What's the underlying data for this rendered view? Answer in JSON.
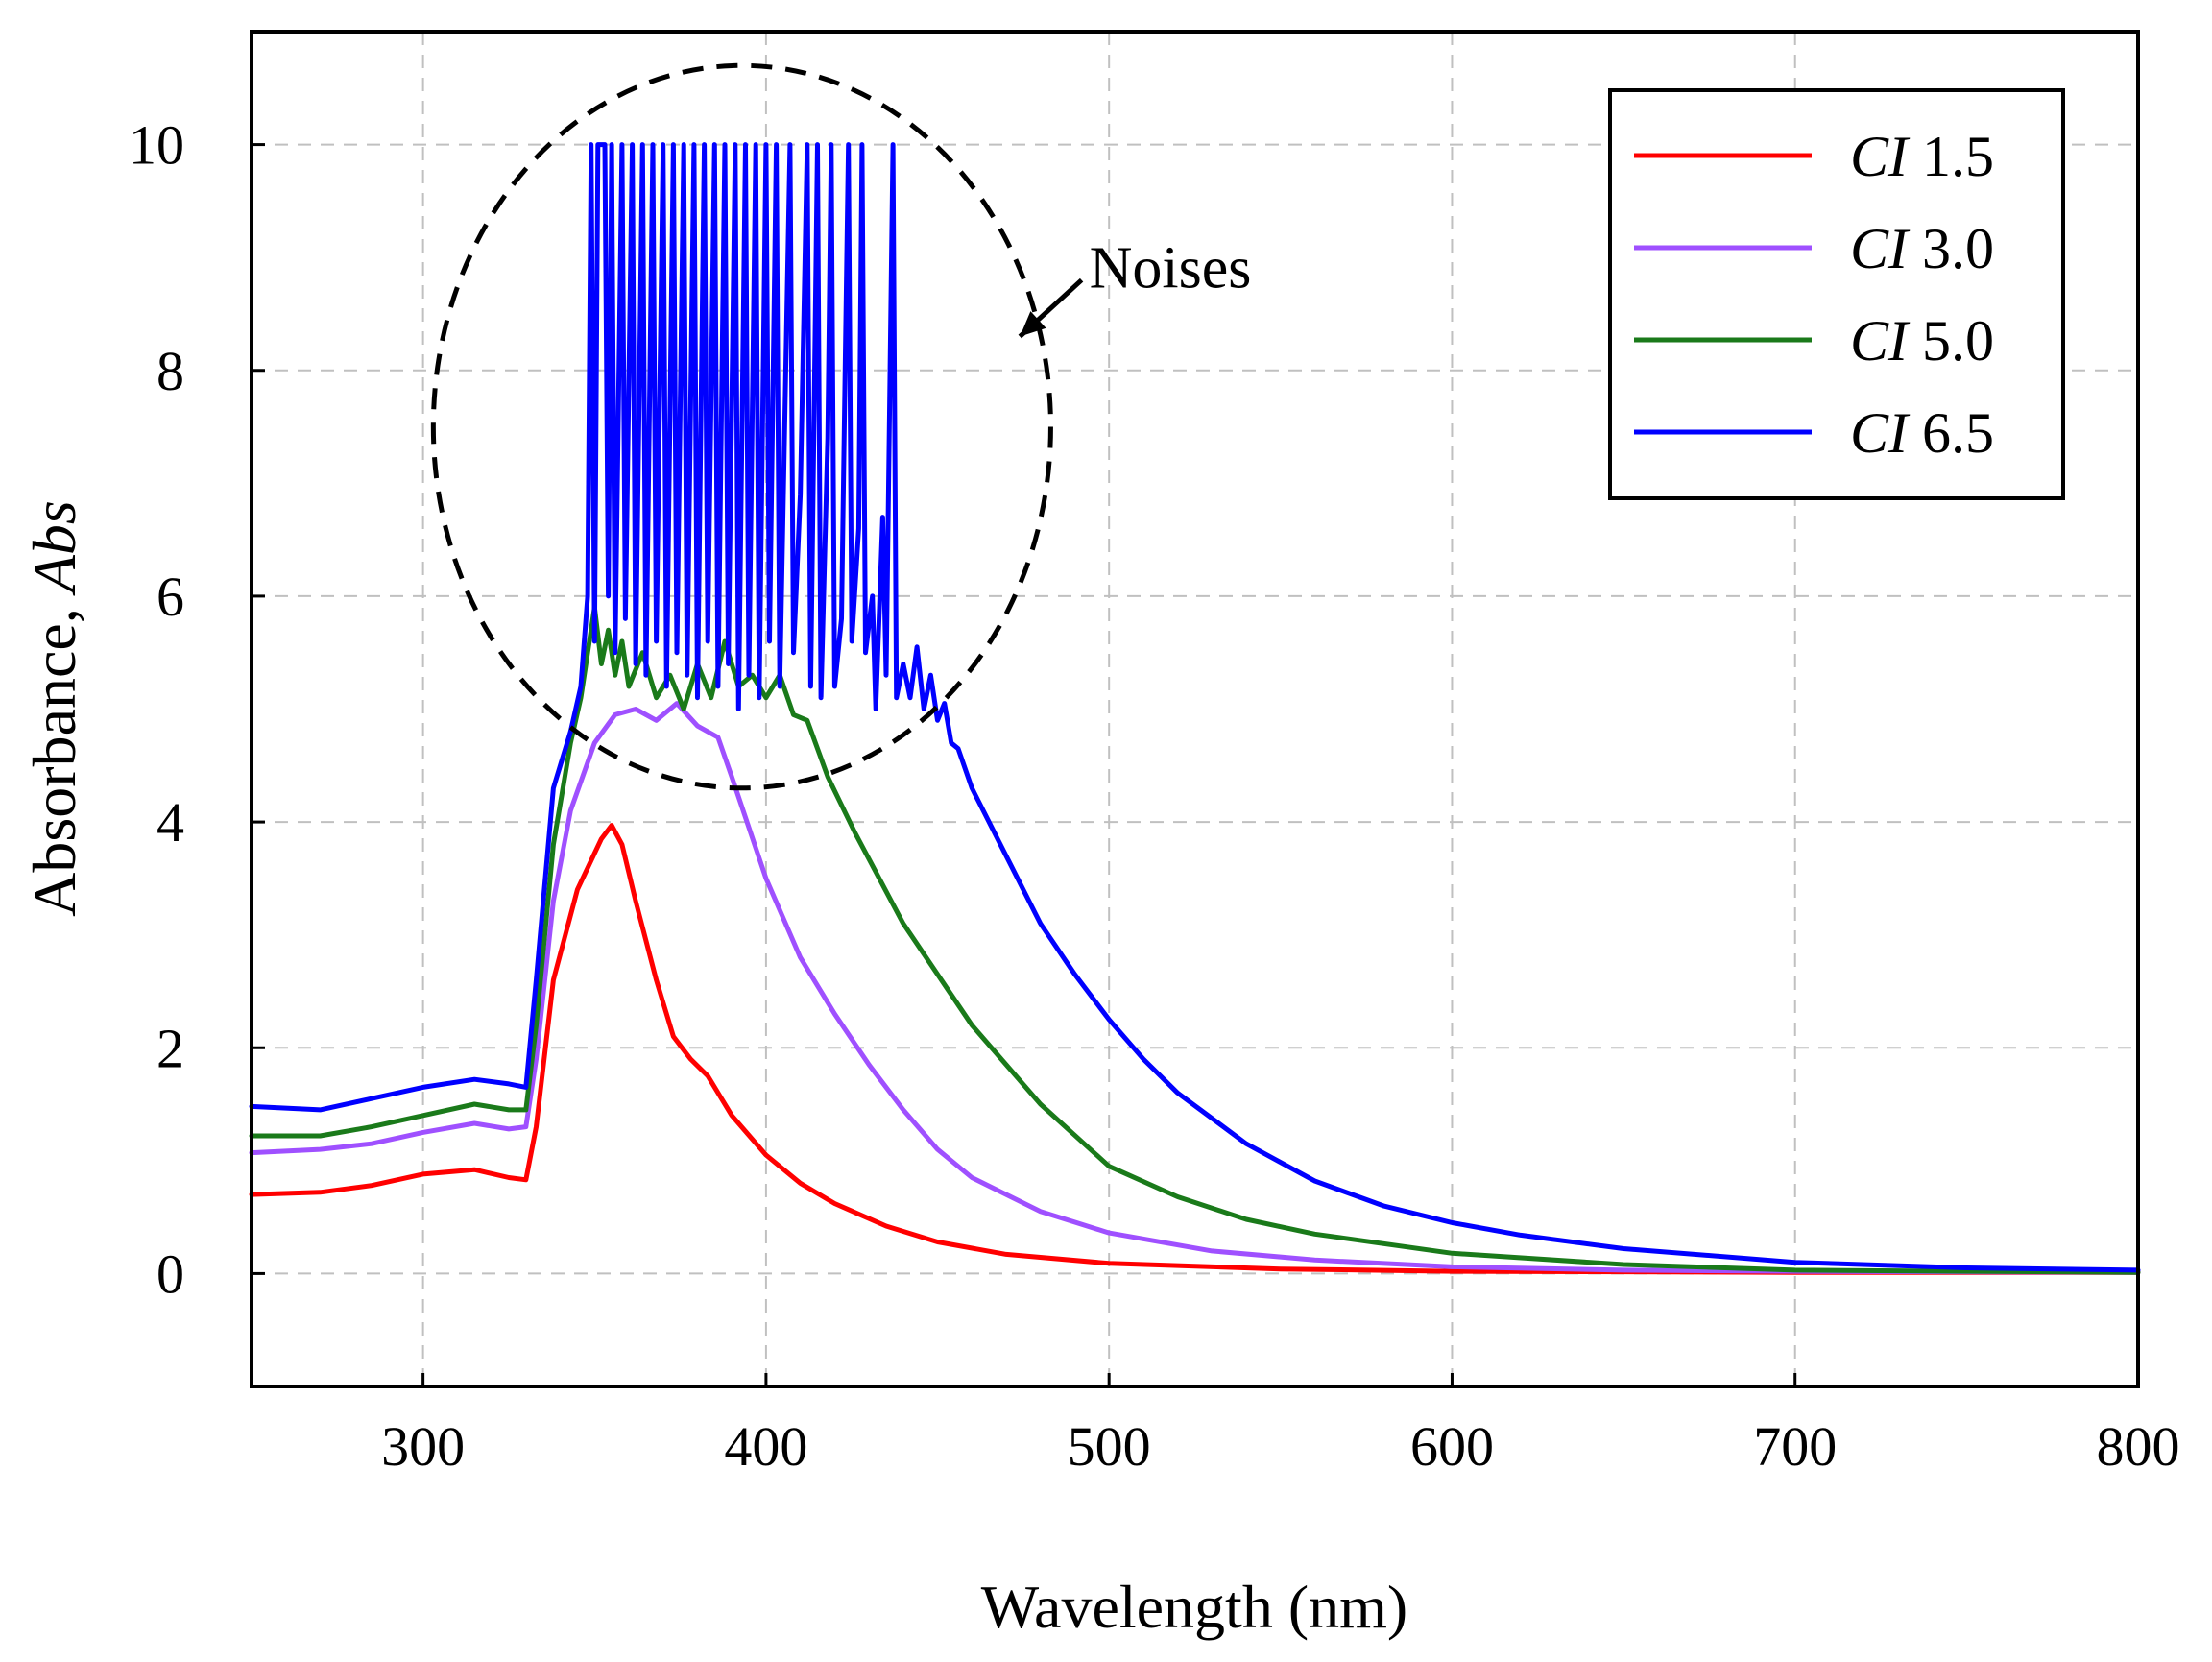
{
  "chart_data": {
    "type": "line",
    "title": "",
    "xlabel": "Wavelength (nm)",
    "ylabel_prefix": "Absorbance, ",
    "ylabel_italic": "Abs",
    "xlim": [
      250,
      800
    ],
    "ylim": [
      -1,
      11
    ],
    "xticks": [
      300,
      400,
      500,
      600,
      700,
      800
    ],
    "yticks": [
      0,
      2,
      4,
      6,
      8,
      10
    ],
    "grid": true,
    "legend_position": "top-right",
    "annotation": {
      "text": "Noises",
      "ellipse_center": [
        393,
        7.5
      ],
      "ellipse_radius_x": 90,
      "ellipse_radius_y": 3.2,
      "arrow_from": [
        492,
        8.8
      ],
      "arrow_to": [
        474,
        8.3
      ]
    },
    "series": [
      {
        "name_italic": "CI",
        "name_value": " 1.5",
        "color": "#ff0000",
        "points": [
          [
            250,
            0.7
          ],
          [
            270,
            0.72
          ],
          [
            285,
            0.78
          ],
          [
            300,
            0.88
          ],
          [
            315,
            0.92
          ],
          [
            325,
            0.85
          ],
          [
            330,
            0.83
          ],
          [
            333,
            1.3
          ],
          [
            338,
            2.6
          ],
          [
            345,
            3.4
          ],
          [
            352,
            3.85
          ],
          [
            355,
            3.97
          ],
          [
            358,
            3.8
          ],
          [
            362,
            3.3
          ],
          [
            368,
            2.6
          ],
          [
            373,
            2.1
          ],
          [
            378,
            1.9
          ],
          [
            383,
            1.75
          ],
          [
            390,
            1.4
          ],
          [
            400,
            1.05
          ],
          [
            410,
            0.8
          ],
          [
            420,
            0.62
          ],
          [
            435,
            0.42
          ],
          [
            450,
            0.28
          ],
          [
            470,
            0.17
          ],
          [
            500,
            0.09
          ],
          [
            550,
            0.04
          ],
          [
            600,
            0.02
          ],
          [
            700,
            0.01
          ],
          [
            800,
            0.01
          ]
        ]
      },
      {
        "name_italic": "CI",
        "name_value": " 3.0",
        "color": "#9f50ff",
        "points": [
          [
            250,
            1.07
          ],
          [
            270,
            1.1
          ],
          [
            285,
            1.15
          ],
          [
            300,
            1.25
          ],
          [
            315,
            1.33
          ],
          [
            325,
            1.28
          ],
          [
            330,
            1.3
          ],
          [
            333,
            1.9
          ],
          [
            338,
            3.3
          ],
          [
            343,
            4.1
          ],
          [
            350,
            4.7
          ],
          [
            356,
            4.95
          ],
          [
            362,
            5.0
          ],
          [
            368,
            4.9
          ],
          [
            374,
            5.05
          ],
          [
            380,
            4.85
          ],
          [
            386,
            4.75
          ],
          [
            390,
            4.4
          ],
          [
            400,
            3.5
          ],
          [
            410,
            2.8
          ],
          [
            420,
            2.3
          ],
          [
            430,
            1.85
          ],
          [
            440,
            1.45
          ],
          [
            450,
            1.1
          ],
          [
            460,
            0.85
          ],
          [
            480,
            0.55
          ],
          [
            500,
            0.36
          ],
          [
            530,
            0.2
          ],
          [
            560,
            0.12
          ],
          [
            600,
            0.06
          ],
          [
            650,
            0.03
          ],
          [
            700,
            0.02
          ],
          [
            800,
            0.01
          ]
        ]
      },
      {
        "name_italic": "CI",
        "name_value": " 5.0",
        "color": "#1a7a1a",
        "points": [
          [
            250,
            1.22
          ],
          [
            270,
            1.22
          ],
          [
            285,
            1.3
          ],
          [
            300,
            1.4
          ],
          [
            315,
            1.5
          ],
          [
            325,
            1.45
          ],
          [
            330,
            1.45
          ],
          [
            333,
            2.2
          ],
          [
            338,
            3.8
          ],
          [
            343,
            4.7
          ],
          [
            346,
            5.1
          ],
          [
            348,
            5.5
          ],
          [
            350,
            5.9
          ],
          [
            352,
            5.4
          ],
          [
            354,
            5.7
          ],
          [
            356,
            5.3
          ],
          [
            358,
            5.6
          ],
          [
            360,
            5.2
          ],
          [
            364,
            5.5
          ],
          [
            368,
            5.1
          ],
          [
            372,
            5.3
          ],
          [
            376,
            5.0
          ],
          [
            380,
            5.4
          ],
          [
            384,
            5.1
          ],
          [
            388,
            5.6
          ],
          [
            392,
            5.2
          ],
          [
            396,
            5.3
          ],
          [
            400,
            5.1
          ],
          [
            404,
            5.3
          ],
          [
            408,
            4.95
          ],
          [
            412,
            4.9
          ],
          [
            418,
            4.4
          ],
          [
            426,
            3.9
          ],
          [
            440,
            3.1
          ],
          [
            460,
            2.2
          ],
          [
            480,
            1.5
          ],
          [
            500,
            0.95
          ],
          [
            520,
            0.68
          ],
          [
            540,
            0.48
          ],
          [
            560,
            0.35
          ],
          [
            600,
            0.18
          ],
          [
            650,
            0.08
          ],
          [
            700,
            0.03
          ],
          [
            800,
            0.01
          ]
        ]
      },
      {
        "name_italic": "CI",
        "name_value": " 6.5",
        "color": "#0000ff",
        "points": [
          [
            250,
            1.48
          ],
          [
            270,
            1.45
          ],
          [
            285,
            1.55
          ],
          [
            300,
            1.65
          ],
          [
            315,
            1.72
          ],
          [
            325,
            1.68
          ],
          [
            330,
            1.65
          ],
          [
            333,
            2.6
          ],
          [
            338,
            4.3
          ],
          [
            343,
            4.8
          ],
          [
            346,
            5.2
          ],
          [
            348,
            6.0
          ],
          [
            349,
            10.0
          ],
          [
            350,
            5.6
          ],
          [
            351,
            10.0
          ],
          [
            353,
            10.0
          ],
          [
            354,
            6.0
          ],
          [
            355,
            10.0
          ],
          [
            356,
            5.5
          ],
          [
            358,
            10.0
          ],
          [
            359,
            5.8
          ],
          [
            361,
            10.0
          ],
          [
            362,
            5.4
          ],
          [
            364,
            10.0
          ],
          [
            365,
            5.3
          ],
          [
            367,
            10.0
          ],
          [
            368,
            5.6
          ],
          [
            370,
            10.0
          ],
          [
            371,
            5.2
          ],
          [
            373,
            10.0
          ],
          [
            374,
            5.5
          ],
          [
            376,
            10.0
          ],
          [
            377,
            5.3
          ],
          [
            379,
            10.0
          ],
          [
            380,
            5.1
          ],
          [
            382,
            10.0
          ],
          [
            383,
            5.6
          ],
          [
            385,
            10.0
          ],
          [
            386,
            5.2
          ],
          [
            388,
            10.0
          ],
          [
            389,
            5.4
          ],
          [
            391,
            10.0
          ],
          [
            392,
            5.0
          ],
          [
            394,
            10.0
          ],
          [
            395,
            5.3
          ],
          [
            397,
            10.0
          ],
          [
            398,
            5.1
          ],
          [
            400,
            10.0
          ],
          [
            401,
            5.6
          ],
          [
            403,
            10.0
          ],
          [
            404,
            5.2
          ],
          [
            407,
            10.0
          ],
          [
            408,
            5.5
          ],
          [
            410,
            6.9
          ],
          [
            412,
            10.0
          ],
          [
            413,
            5.2
          ],
          [
            415,
            10.0
          ],
          [
            416,
            5.1
          ],
          [
            418,
            7.4
          ],
          [
            419,
            10.0
          ],
          [
            420,
            5.2
          ],
          [
            422,
            5.8
          ],
          [
            424,
            10.0
          ],
          [
            425,
            5.6
          ],
          [
            427,
            6.6
          ],
          [
            428,
            10.0
          ],
          [
            429,
            5.5
          ],
          [
            431,
            6.0
          ],
          [
            432,
            5.0
          ],
          [
            434,
            6.7
          ],
          [
            435,
            5.3
          ],
          [
            437,
            10.0
          ],
          [
            438,
            5.1
          ],
          [
            440,
            5.4
          ],
          [
            442,
            5.1
          ],
          [
            444,
            5.55
          ],
          [
            446,
            5.0
          ],
          [
            448,
            5.3
          ],
          [
            450,
            4.9
          ],
          [
            452,
            5.05
          ],
          [
            454,
            4.7
          ],
          [
            456,
            4.65
          ],
          [
            460,
            4.3
          ],
          [
            470,
            3.7
          ],
          [
            480,
            3.1
          ],
          [
            490,
            2.65
          ],
          [
            500,
            2.25
          ],
          [
            510,
            1.9
          ],
          [
            520,
            1.6
          ],
          [
            540,
            1.15
          ],
          [
            560,
            0.82
          ],
          [
            580,
            0.6
          ],
          [
            600,
            0.45
          ],
          [
            620,
            0.34
          ],
          [
            650,
            0.22
          ],
          [
            700,
            0.1
          ],
          [
            750,
            0.05
          ],
          [
            800,
            0.03
          ]
        ]
      }
    ]
  }
}
